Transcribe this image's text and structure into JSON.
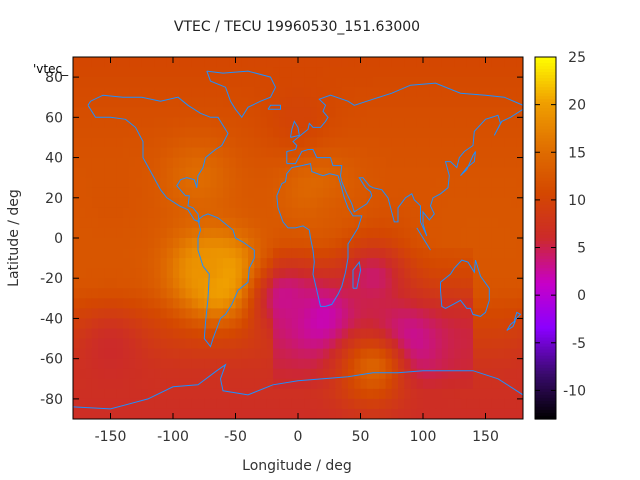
{
  "chart_data": {
    "type": "heatmap",
    "title": "VTEC / TECU 19960530_151.63000",
    "xlabel": "Longitude / deg",
    "ylabel": "Latitude / deg",
    "legend_label": "'vtec_",
    "xlim": [
      -180,
      180
    ],
    "ylim": [
      -90,
      90
    ],
    "x_ticks": [
      -150,
      -100,
      -50,
      0,
      50,
      100,
      150
    ],
    "y_ticks": [
      -80,
      -60,
      -40,
      -20,
      0,
      20,
      40,
      60,
      80
    ],
    "colorbar": {
      "range": [
        -13,
        25
      ],
      "ticks": [
        25,
        20,
        15,
        10,
        5,
        0,
        -5,
        -10
      ],
      "palette": [
        "#000000",
        "#3a0a6e",
        "#8a00ff",
        "#c700c7",
        "#cc2a2a",
        "#d44800",
        "#e07000",
        "#f0a000",
        "#ffff00"
      ]
    },
    "grid": false,
    "features": [
      {
        "lon": -60,
        "lat": -20,
        "tecu": 24
      },
      {
        "lon": -75,
        "lat": -15,
        "tecu": 19
      },
      {
        "lon": -80,
        "lat": 30,
        "tecu": 15
      },
      {
        "lon": 15,
        "lat": 25,
        "tecu": 15
      },
      {
        "lon": 35,
        "lat": 10,
        "tecu": 13
      },
      {
        "lon": 80,
        "lat": 10,
        "tecu": 12
      },
      {
        "lon": -150,
        "lat": 20,
        "tecu": 12
      },
      {
        "lon": 20,
        "lat": -40,
        "tecu": 1
      },
      {
        "lon": 80,
        "lat": -55,
        "tecu": 0
      },
      {
        "lon": -10,
        "lat": -30,
        "tecu": 3
      },
      {
        "lon": 60,
        "lat": -20,
        "tecu": 4
      },
      {
        "lon": 60,
        "lat": -65,
        "tecu": 14
      },
      {
        "lon": -150,
        "lat": -55,
        "tecu": 6
      },
      {
        "lon": 0,
        "lat": 60,
        "tecu": 10
      }
    ],
    "colors": {
      "coastline": "#1e8fff",
      "frame": "#000000"
    }
  }
}
